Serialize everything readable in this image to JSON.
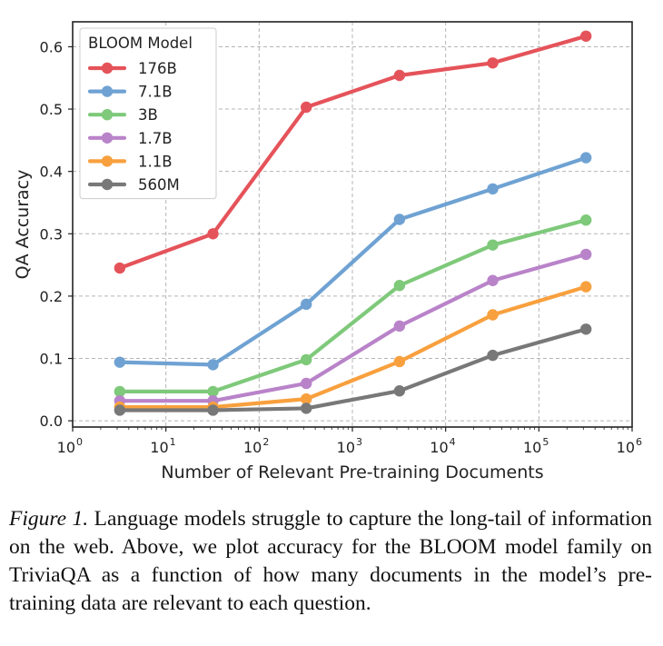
{
  "chart_data": {
    "type": "line",
    "xscale": "log",
    "xlabel": "Number of Relevant Pre-training Documents",
    "ylabel": "QA Accuracy",
    "xlim": [
      1,
      1000000
    ],
    "ylim": [
      -0.01,
      0.64
    ],
    "xticks": [
      1,
      10,
      100,
      1000,
      10000,
      100000,
      1000000
    ],
    "xtick_labels": [
      {
        "base": "10",
        "exp": "0"
      },
      {
        "base": "10",
        "exp": "1"
      },
      {
        "base": "10",
        "exp": "2"
      },
      {
        "base": "10",
        "exp": "3"
      },
      {
        "base": "10",
        "exp": "4"
      },
      {
        "base": "10",
        "exp": "5"
      },
      {
        "base": "10",
        "exp": "6"
      }
    ],
    "yticks": [
      0.0,
      0.1,
      0.2,
      0.3,
      0.4,
      0.5,
      0.6
    ],
    "ytick_labels": [
      "0.0",
      "0.1",
      "0.2",
      "0.3",
      "0.4",
      "0.5",
      "0.6"
    ],
    "grid": true,
    "legend_title": "BLOOM Model",
    "legend_position": "top-left",
    "x": [
      3.2,
      32,
      320,
      3200,
      32000,
      320000
    ],
    "series": [
      {
        "name": "176B",
        "color": "#e5535a",
        "values": [
          0.245,
          0.3,
          0.503,
          0.554,
          0.574,
          0.617
        ]
      },
      {
        "name": "7.1B",
        "color": "#6fa2d3",
        "values": [
          0.094,
          0.09,
          0.187,
          0.323,
          0.372,
          0.422
        ]
      },
      {
        "name": "3B",
        "color": "#7ec97a",
        "values": [
          0.047,
          0.047,
          0.098,
          0.217,
          0.282,
          0.322
        ]
      },
      {
        "name": "1.7B",
        "color": "#b983c9",
        "values": [
          0.032,
          0.032,
          0.06,
          0.152,
          0.225,
          0.267
        ]
      },
      {
        "name": "1.1B",
        "color": "#f8a03e",
        "values": [
          0.022,
          0.022,
          0.035,
          0.095,
          0.17,
          0.215
        ]
      },
      {
        "name": "560M",
        "color": "#787878",
        "values": [
          0.017,
          0.017,
          0.02,
          0.048,
          0.105,
          0.147
        ]
      }
    ]
  },
  "caption": {
    "label": "Figure 1.",
    "text": " Language models struggle to capture the long-tail of information on the web. Above, we plot accuracy for the BLOOM model family on TriviaQA as a function of how many documents in the model’s pre-training data are relevant to each question."
  }
}
